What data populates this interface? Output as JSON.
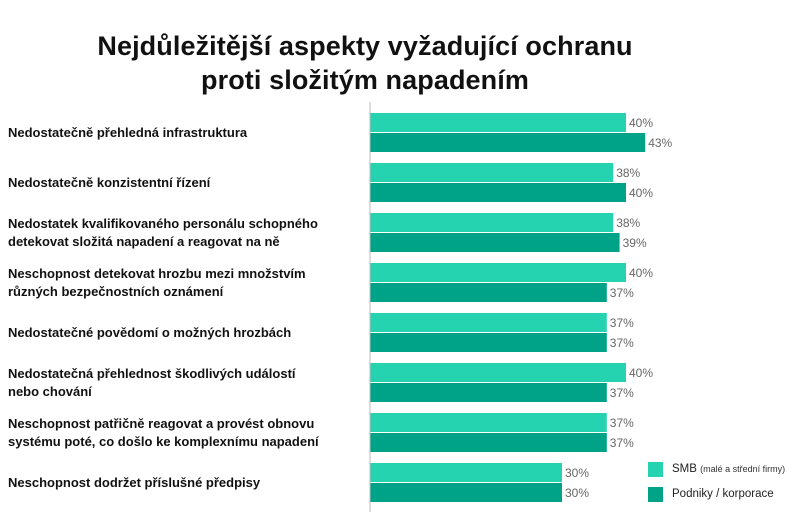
{
  "chart_data": {
    "type": "bar",
    "orientation": "horizontal",
    "title_lines": [
      "Nejdůležitější aspekty vyžadující ochranu",
      "proti složitým napadením"
    ],
    "categories": [
      [
        "Nedostatečně přehledná infrastruktura"
      ],
      [
        "Nedostatečně konzistentní řízení"
      ],
      [
        "Nedostatek kvalifikovaného personálu schopného",
        "detekovat složitá napadení a reagovat na ně"
      ],
      [
        "Neschopnost detekovat hrozbu mezi množstvím",
        "různých bezpečnostních oznámení"
      ],
      [
        "Nedostatečné povědomí o možných hrozbách"
      ],
      [
        "Nedostatečná přehlednost škodlivých událostí",
        "nebo chování"
      ],
      [
        "Neschopnost patřičně reagovat a provést obnovu",
        "systému poté, co došlo ke komplexnímu napadení"
      ],
      [
        "Neschopnost dodržet příslušné předpisy"
      ]
    ],
    "series": [
      {
        "name": "SMB",
        "name_suffix": "(malé a střední firmy)",
        "color": "#26d3b0",
        "values": [
          40,
          38,
          38,
          40,
          37,
          40,
          37,
          30
        ]
      },
      {
        "name": "Podniky / korporace",
        "name_suffix": "",
        "color": "#00a387",
        "values": [
          43,
          40,
          39,
          37,
          37,
          37,
          37,
          30
        ]
      }
    ],
    "value_suffix": "%",
    "xlim": [
      0,
      50
    ],
    "grid": false,
    "legend_position": "bottom-right",
    "axis_color": "#bbbbbb",
    "label_color": "#666666"
  }
}
